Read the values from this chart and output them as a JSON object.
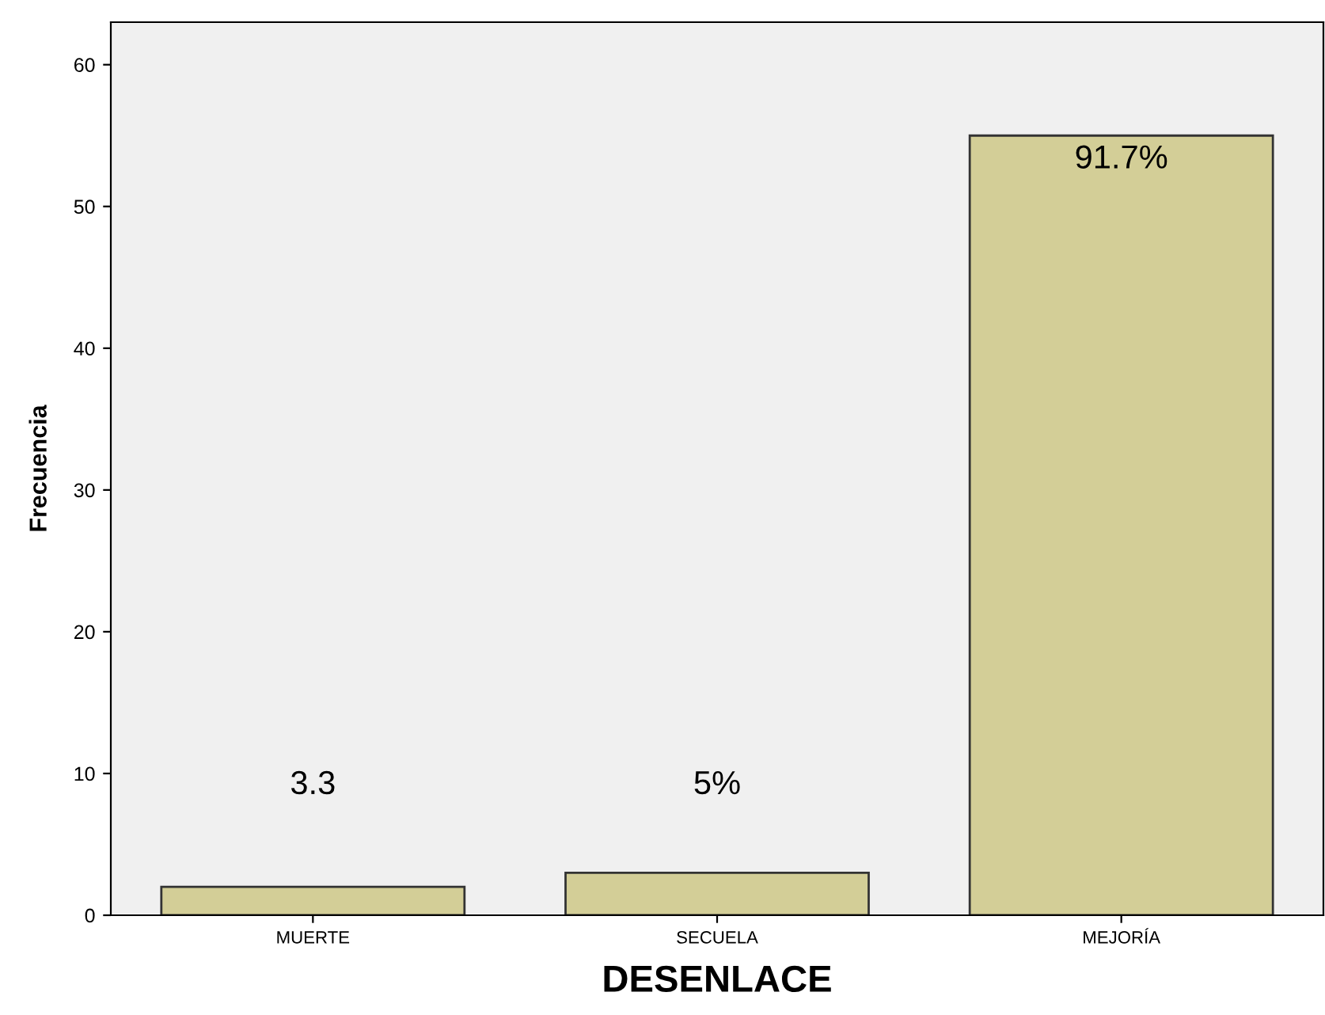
{
  "chart_data": {
    "type": "bar",
    "xlabel": "DESENLACE",
    "ylabel": "Frecuencia",
    "categories": [
      "MUERTE",
      "SECUELA",
      "MEJORÍA"
    ],
    "values": [
      2,
      3,
      55
    ],
    "annotations": [
      "3.3",
      "5%",
      "91.7%"
    ],
    "color": "#d3ce97",
    "ylim": [
      0,
      63
    ],
    "yticks": [
      0,
      10,
      20,
      30,
      40,
      50,
      60
    ],
    "grid": false,
    "legend": false
  }
}
